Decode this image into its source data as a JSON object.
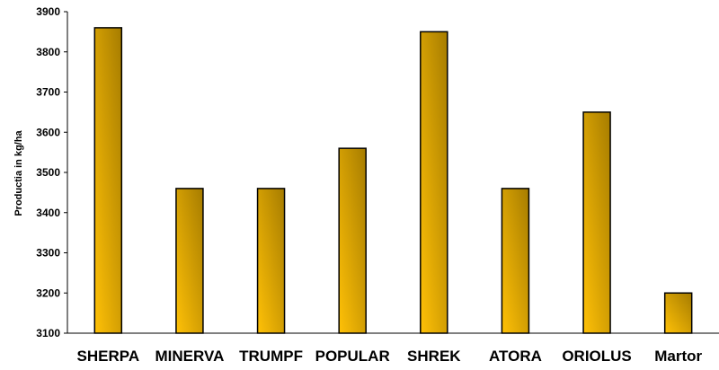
{
  "chart_data": {
    "type": "bar",
    "title": "",
    "xlabel": "",
    "ylabel": "Productia in kg/ha",
    "categories": [
      "SHERPA",
      "MINERVA",
      "TRUMPF",
      "POPULAR",
      "SHREK",
      "ATORA",
      "ORIOLUS",
      "Martor"
    ],
    "values": [
      3860,
      3460,
      3460,
      3560,
      3850,
      3460,
      3650,
      3200
    ],
    "ylim": [
      3100,
      3900
    ],
    "yticks": [
      3100,
      3200,
      3300,
      3400,
      3500,
      3600,
      3700,
      3800,
      3900
    ],
    "grid": false,
    "legend": "none",
    "colors": {
      "bar_light": "#FFC107",
      "bar_dark": "#A67C00",
      "bar_stroke": "#000000",
      "axis": "#000000"
    }
  }
}
